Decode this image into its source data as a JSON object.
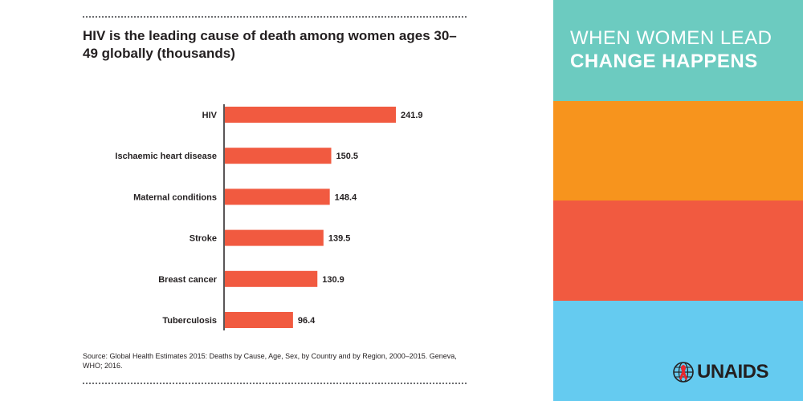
{
  "chart_data": {
    "type": "bar",
    "orientation": "horizontal",
    "title": "HIV is the leading cause of death among women ages 30–49 globally (thousands)",
    "categories": [
      "HIV",
      "Ischaemic heart disease",
      "Maternal conditions",
      "Stroke",
      "Breast cancer",
      "Tuberculosis"
    ],
    "values": [
      241.9,
      150.5,
      148.4,
      139.5,
      130.9,
      96.4
    ],
    "value_labels": [
      "241.9",
      "150.5",
      "148.4",
      "139.5",
      "130.9",
      "96.4"
    ],
    "xlim": [
      0,
      260
    ],
    "bar_color": "#f15a40",
    "grid": false
  },
  "source": "Source: Global Health Estimates 2015: Deaths by Cause, Age, Sex, by Country and by Region, 2000–2015. Geneva, WHO; 2016.",
  "sidebar": {
    "tagline_line1": "WHEN WOMEN LEAD",
    "tagline_line2": "CHANGE HAPPENS",
    "colors": [
      "#6ccbc0",
      "#f7941d",
      "#f15a40",
      "#65cbf0"
    ]
  },
  "logo": {
    "text": "UNAIDS",
    "ribbon_color": "#e8262d"
  }
}
